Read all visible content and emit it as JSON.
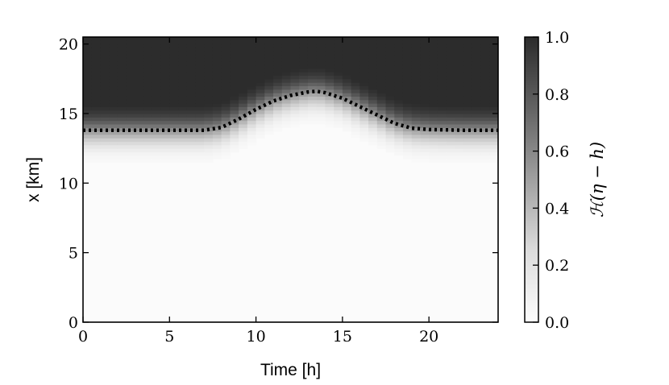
{
  "chart_data": {
    "type": "heatmap",
    "title": "",
    "xlabel": "Time [h]",
    "ylabel": "x [km]",
    "xlim": [
      0,
      24
    ],
    "ylim": [
      0,
      20.5
    ],
    "x_ticks": [
      0,
      5,
      10,
      15,
      20
    ],
    "y_ticks": [
      0,
      5,
      10,
      15,
      20
    ],
    "colormap": "greys",
    "colorbar": {
      "label": "ℋ(η − h)",
      "range": [
        0.0,
        1.0
      ],
      "ticks": [
        "0.0",
        "0.2",
        "0.4",
        "0.6",
        "0.8",
        "1.0"
      ]
    },
    "series": [
      {
        "style": "dashed black line",
        "x": [
          0,
          2,
          4,
          6,
          7,
          8,
          9,
          10,
          11,
          12,
          13,
          13.5,
          14,
          15,
          16,
          17,
          18,
          19,
          20,
          22,
          24
        ],
        "values": [
          13.8,
          13.8,
          13.8,
          13.8,
          13.8,
          14.0,
          14.6,
          15.3,
          15.9,
          16.3,
          16.55,
          16.6,
          16.5,
          16.1,
          15.5,
          14.9,
          14.3,
          13.95,
          13.85,
          13.8,
          13.8
        ]
      }
    ],
    "grid": false,
    "legend": "none"
  }
}
